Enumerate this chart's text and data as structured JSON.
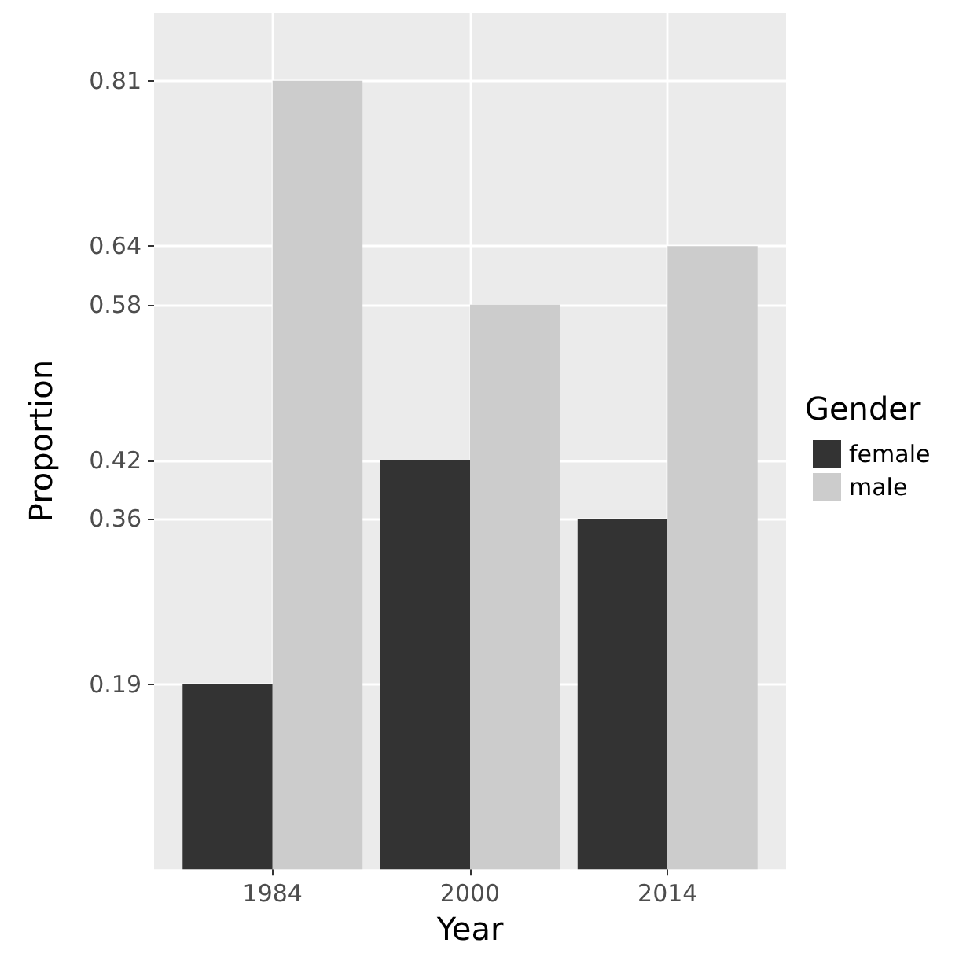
{
  "chart_data": {
    "type": "bar",
    "xlabel": "Year",
    "ylabel": "Proportion",
    "legend_title": "Gender",
    "categories": [
      "1984",
      "2000",
      "2014"
    ],
    "series": [
      {
        "name": "female",
        "color": "#333333",
        "values": [
          0.19,
          0.42,
          0.36
        ]
      },
      {
        "name": "male",
        "color": "#cccccc",
        "values": [
          0.81,
          0.58,
          0.64
        ]
      }
    ],
    "ylim": [
      0,
      0.88
    ],
    "yticks": [
      0.19,
      0.36,
      0.42,
      0.58,
      0.64,
      0.81
    ],
    "grid": true,
    "legend": "right"
  }
}
